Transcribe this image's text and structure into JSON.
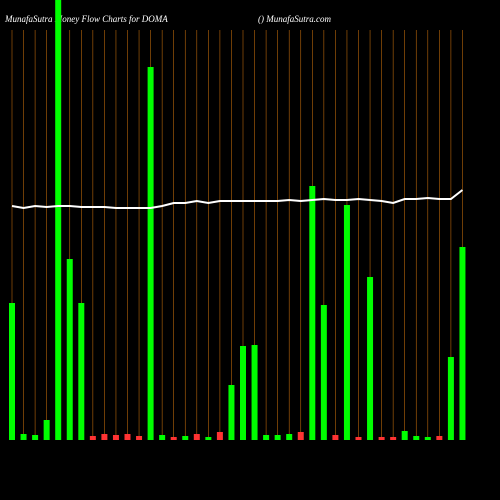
{
  "chart_data": {
    "type": "bar",
    "title": "MunafaSutra  Money Flow  Charts for DOMA",
    "subtitle": "() MunafaSutra.com",
    "categories": [
      null,
      null,
      null,
      null,
      null,
      null,
      null,
      null,
      null,
      null,
      null,
      null,
      null,
      null,
      null,
      null,
      null,
      null,
      null,
      null,
      null,
      null,
      null,
      null,
      null,
      null,
      null,
      null,
      null,
      null,
      null,
      null,
      null,
      null,
      null,
      null,
      null,
      null,
      null,
      null
    ],
    "values": [
      137,
      6,
      5,
      20,
      440,
      181,
      137,
      4,
      6,
      5,
      6,
      4,
      373,
      5,
      3,
      4,
      6,
      3,
      8,
      55,
      94,
      95,
      5,
      5,
      6,
      8,
      254,
      135,
      5,
      235,
      3,
      163,
      3,
      3,
      9,
      4,
      3,
      4,
      83,
      193
    ],
    "colors": [
      "#00ff00",
      "#00ff00",
      "#00ff00",
      "#00ff00",
      "#00ff00",
      "#00ff00",
      "#00ff00",
      "#ff3333",
      "#ff3333",
      "#ff3333",
      "#ff3333",
      "#ff3333",
      "#00ff00",
      "#00ff00",
      "#ff3333",
      "#00ff00",
      "#ff3333",
      "#00ff00",
      "#ff3333",
      "#00ff00",
      "#00ff00",
      "#00ff00",
      "#00ff00",
      "#00ff00",
      "#00ff00",
      "#ff3333",
      "#00ff00",
      "#00ff00",
      "#ff3333",
      "#00ff00",
      "#ff3333",
      "#00ff00",
      "#ff3333",
      "#ff3333",
      "#00ff00",
      "#00ff00",
      "#00ff00",
      "#ff3333",
      "#00ff00",
      "#00ff00"
    ],
    "line": {
      "color": "#ffffff",
      "values": [
        234,
        232,
        234,
        233,
        234,
        234,
        233,
        233,
        233,
        232,
        232,
        232,
        232,
        234,
        237,
        237,
        239,
        237,
        239,
        239,
        239,
        239,
        239,
        239,
        240,
        239,
        240,
        241,
        240,
        240,
        241,
        240,
        239,
        237,
        241,
        241,
        242,
        241,
        241,
        250
      ]
    },
    "grid_color": "#b8660b",
    "ylim": [
      0,
      440
    ]
  }
}
